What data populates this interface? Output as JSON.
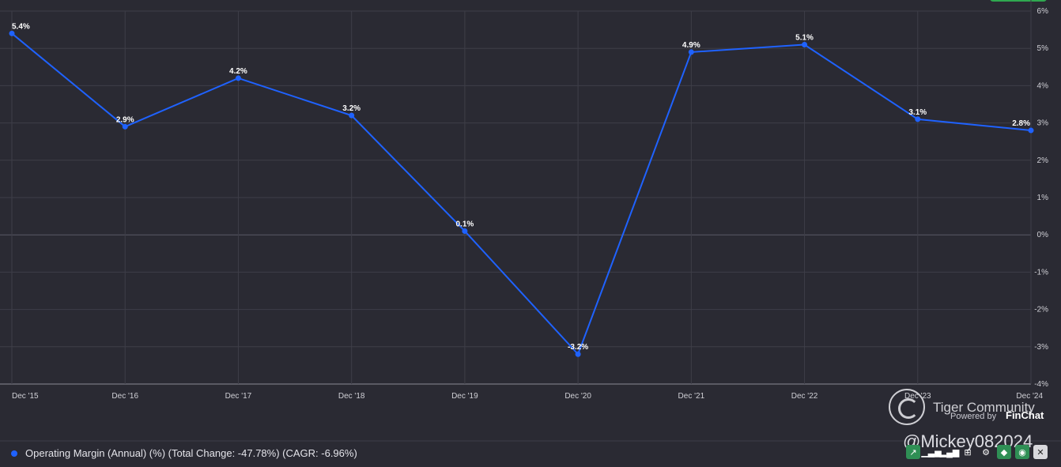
{
  "chart_data": {
    "type": "line",
    "categories": [
      "Dec '15",
      "Dec '16",
      "Dec '17",
      "Dec '18",
      "Dec '19",
      "Dec '20",
      "Dec '21",
      "Dec '22",
      "Dec '23",
      "Dec '24"
    ],
    "series": [
      {
        "name": "Operating Margin (Annual) (%)",
        "values": [
          5.4,
          2.9,
          4.2,
          3.2,
          0.1,
          -3.2,
          4.9,
          5.1,
          3.1,
          2.8
        ],
        "labels": [
          "5.4%",
          "2.9%",
          "4.2%",
          "3.2%",
          "0.1%",
          "-3.2%",
          "4.9%",
          "5.1%",
          "3.1%",
          "2.8%"
        ],
        "color": "#1f62ff"
      }
    ],
    "y_ticks": [
      "6%",
      "5%",
      "4%",
      "3%",
      "2%",
      "1%",
      "0%",
      "-1%",
      "-2%",
      "-3%",
      "-4%"
    ],
    "ylim": [
      -4,
      6
    ],
    "grid": true,
    "legend_position": "bottom-left"
  },
  "legend": {
    "text": "Operating Margin (Annual) (%) (Total Change: -47.78%) (CAGR: -6.96%)"
  },
  "watermark": {
    "brand": "Tiger Community",
    "powered": "Powered by",
    "provider": "FinChat",
    "handle": "@Mickey082024"
  },
  "colors": {
    "background": "#2a2a33",
    "grid": "#3e3e48",
    "line": "#1f62ff"
  },
  "toolbar_icons": [
    "trend-icon",
    "bar-chart-icon",
    "bar-chart-alt-icon",
    "table-icon",
    "gear-icon",
    "tag-icon",
    "eye-icon",
    "close-icon"
  ]
}
